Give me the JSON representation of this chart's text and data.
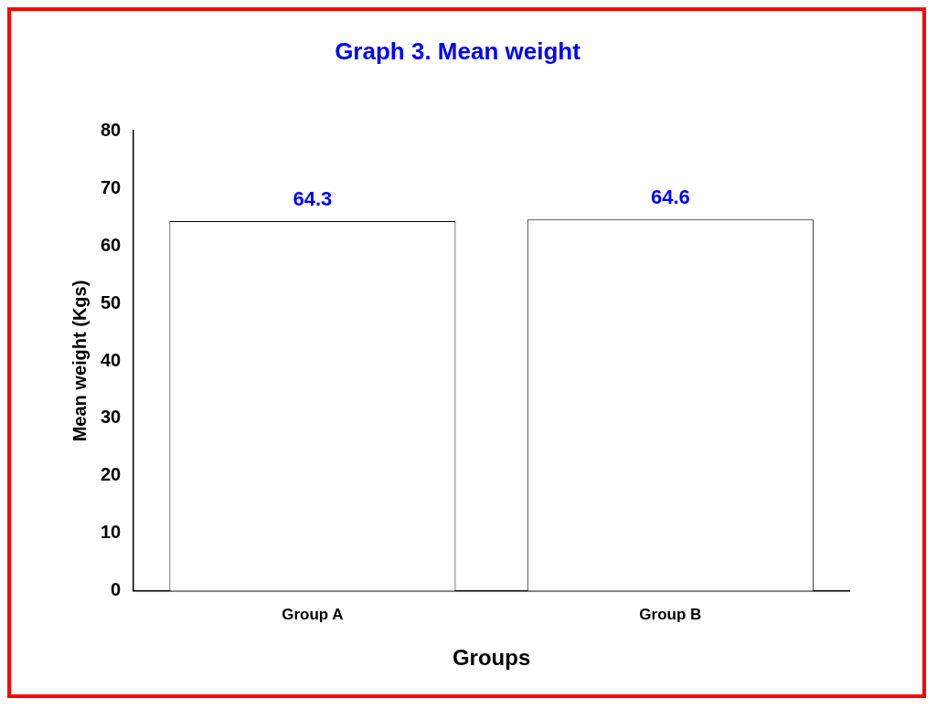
{
  "chart_data": {
    "type": "bar",
    "title": "Graph 3. Mean weight",
    "xlabel": "Groups",
    "ylabel": "Mean weight (Kgs)",
    "categories": [
      "Group A",
      "Group B"
    ],
    "values": [
      64.3,
      64.6
    ],
    "color": "#ffffff",
    "ylim": [
      0,
      80
    ],
    "yticks": [
      0,
      10,
      20,
      30,
      40,
      50,
      60,
      70,
      80
    ],
    "grid": false,
    "legend": false,
    "data_labels": true
  }
}
